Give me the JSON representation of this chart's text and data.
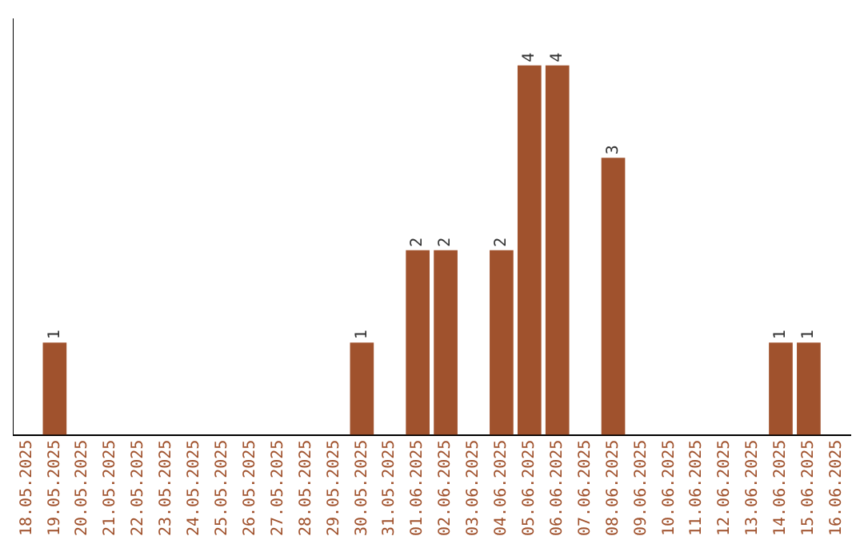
{
  "chart_data": {
    "type": "bar",
    "categories": [
      "18.05.2025",
      "19.05.2025",
      "20.05.2025",
      "21.05.2025",
      "22.05.2025",
      "23.05.2025",
      "24.05.2025",
      "25.05.2025",
      "26.05.2025",
      "27.05.2025",
      "28.05.2025",
      "29.05.2025",
      "30.05.2025",
      "31.05.2025",
      "01.06.2025",
      "02.06.2025",
      "03.06.2025",
      "04.06.2025",
      "05.06.2025",
      "06.06.2025",
      "07.06.2025",
      "08.06.2025",
      "09.06.2025",
      "10.06.2025",
      "11.06.2025",
      "12.06.2025",
      "13.06.2025",
      "14.06.2025",
      "15.06.2025",
      "16.06.2025"
    ],
    "values": [
      0,
      1,
      0,
      0,
      0,
      0,
      0,
      0,
      0,
      0,
      0,
      0,
      1,
      0,
      2,
      2,
      0,
      2,
      4,
      4,
      0,
      3,
      0,
      0,
      0,
      0,
      0,
      1,
      1,
      0
    ],
    "value_labels": [
      null,
      "1",
      null,
      null,
      null,
      null,
      null,
      null,
      null,
      null,
      null,
      null,
      "1",
      null,
      "2",
      "2",
      null,
      "2",
      "4",
      "4",
      null,
      "3",
      null,
      null,
      null,
      null,
      null,
      "1",
      "1",
      null
    ],
    "color": "#a0522d",
    "grid": false,
    "legend": false,
    "tick_labels": "x"
  }
}
